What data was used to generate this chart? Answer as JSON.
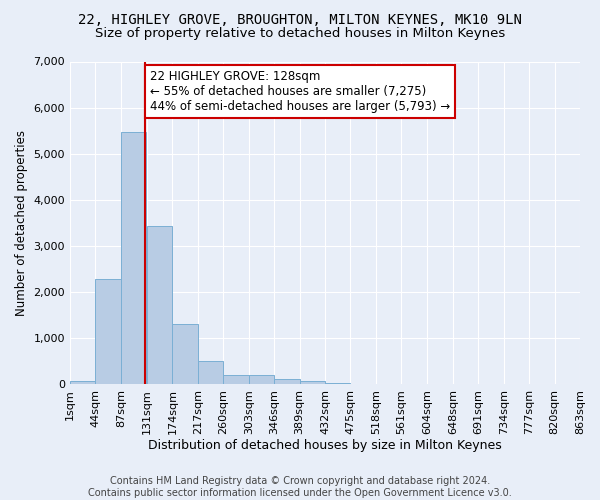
{
  "title1": "22, HIGHLEY GROVE, BROUGHTON, MILTON KEYNES, MK10 9LN",
  "title2": "Size of property relative to detached houses in Milton Keynes",
  "xlabel": "Distribution of detached houses by size in Milton Keynes",
  "ylabel": "Number of detached properties",
  "footnote": "Contains HM Land Registry data © Crown copyright and database right 2024.\nContains public sector information licensed under the Open Government Licence v3.0.",
  "bin_edges": [
    1,
    44,
    87,
    131,
    174,
    217,
    260,
    303,
    346,
    389,
    432,
    475,
    518,
    561,
    604,
    648,
    691,
    734,
    777,
    820,
    863
  ],
  "bar_heights": [
    70,
    2280,
    5480,
    3420,
    1300,
    490,
    200,
    190,
    100,
    60,
    30,
    5,
    5,
    2,
    1,
    1,
    0,
    0,
    0,
    0
  ],
  "bar_color": "#b8cce4",
  "bar_edge_color": "#7bafd4",
  "property_size": 128,
  "vline_color": "#cc0000",
  "annotation_line1": "22 HIGHLEY GROVE: 128sqm",
  "annotation_line2": "← 55% of detached houses are smaller (7,275)",
  "annotation_line3": "44% of semi-detached houses are larger (5,793) →",
  "annotation_box_color": "#ffffff",
  "annotation_box_edge_color": "#cc0000",
  "background_color": "#e8eef8",
  "ylim": [
    0,
    7000
  ],
  "yticks": [
    0,
    1000,
    2000,
    3000,
    4000,
    5000,
    6000,
    7000
  ],
  "title_fontsize": 10,
  "subtitle_fontsize": 9.5,
  "annotation_fontsize": 8.5,
  "xlabel_fontsize": 9,
  "ylabel_fontsize": 8.5,
  "tick_fontsize": 8,
  "footnote_fontsize": 7
}
